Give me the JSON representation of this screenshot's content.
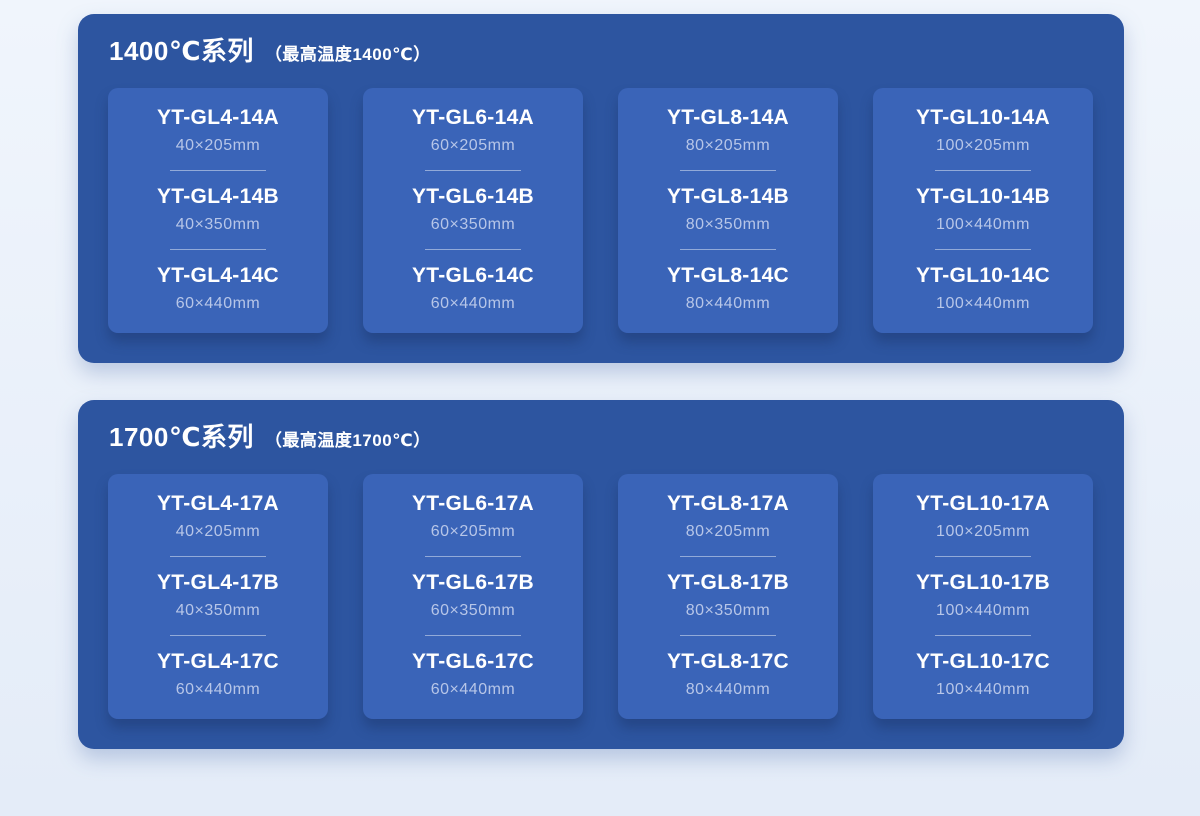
{
  "colors": {
    "page_bg_top": "#f0f5fc",
    "page_bg_bottom": "#e4ecf8",
    "panel_bg": "#2d55a0",
    "card_bg": "#3a64b8",
    "name_text": "#ffffff",
    "dim_text": "#b7c6e8",
    "divider": "rgba(255,255,255,0.45)"
  },
  "sections": [
    {
      "title": "1400℃系列",
      "subtitle": "（最高温度1400℃）",
      "cards": [
        {
          "models": [
            {
              "name": "YT-GL4-14A",
              "size": "40×205mm"
            },
            {
              "name": "YT-GL4-14B",
              "size": "40×350mm"
            },
            {
              "name": "YT-GL4-14C",
              "size": "60×440mm"
            }
          ]
        },
        {
          "models": [
            {
              "name": "YT-GL6-14A",
              "size": "60×205mm"
            },
            {
              "name": "YT-GL6-14B",
              "size": "60×350mm"
            },
            {
              "name": "YT-GL6-14C",
              "size": "60×440mm"
            }
          ]
        },
        {
          "models": [
            {
              "name": "YT-GL8-14A",
              "size": "80×205mm"
            },
            {
              "name": "YT-GL8-14B",
              "size": "80×350mm"
            },
            {
              "name": "YT-GL8-14C",
              "size": "80×440mm"
            }
          ]
        },
        {
          "models": [
            {
              "name": "YT-GL10-14A",
              "size": "100×205mm"
            },
            {
              "name": "YT-GL10-14B",
              "size": "100×440mm"
            },
            {
              "name": "YT-GL10-14C",
              "size": "100×440mm"
            }
          ]
        }
      ]
    },
    {
      "title": "1700℃系列",
      "subtitle": "（最高温度1700℃）",
      "cards": [
        {
          "models": [
            {
              "name": "YT-GL4-17A",
              "size": "40×205mm"
            },
            {
              "name": "YT-GL4-17B",
              "size": "40×350mm"
            },
            {
              "name": "YT-GL4-17C",
              "size": "60×440mm"
            }
          ]
        },
        {
          "models": [
            {
              "name": "YT-GL6-17A",
              "size": "60×205mm"
            },
            {
              "name": "YT-GL6-17B",
              "size": "60×350mm"
            },
            {
              "name": "YT-GL6-17C",
              "size": "60×440mm"
            }
          ]
        },
        {
          "models": [
            {
              "name": "YT-GL8-17A",
              "size": "80×205mm"
            },
            {
              "name": "YT-GL8-17B",
              "size": "80×350mm"
            },
            {
              "name": "YT-GL8-17C",
              "size": "80×440mm"
            }
          ]
        },
        {
          "models": [
            {
              "name": "YT-GL10-17A",
              "size": "100×205mm"
            },
            {
              "name": "YT-GL10-17B",
              "size": "100×440mm"
            },
            {
              "name": "YT-GL10-17C",
              "size": "100×440mm"
            }
          ]
        }
      ]
    }
  ]
}
